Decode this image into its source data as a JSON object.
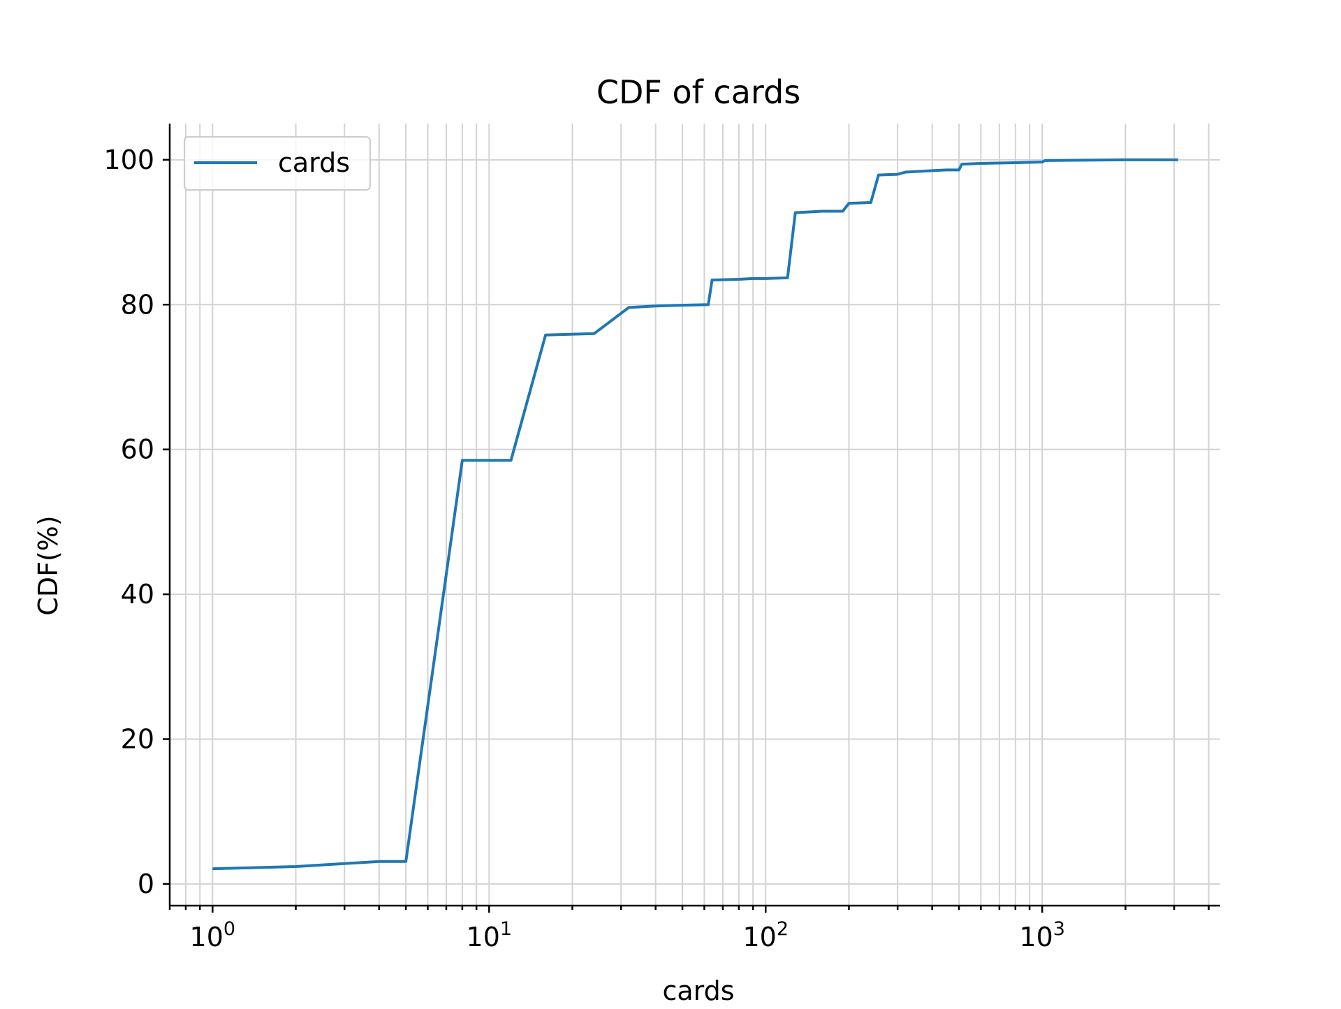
{
  "chart_data": {
    "type": "line",
    "title": "CDF of cards",
    "xlabel": "cards",
    "ylabel": "CDF(%)",
    "x_scale": "log",
    "xlim": [
      0.7,
      4400
    ],
    "ylim": [
      -3,
      105
    ],
    "grid": true,
    "legend_position": "top-left",
    "x_major_ticks": [
      {
        "value": 1,
        "base": "10",
        "exp": "0"
      },
      {
        "value": 10,
        "base": "10",
        "exp": "1"
      },
      {
        "value": 100,
        "base": "10",
        "exp": "2"
      },
      {
        "value": 1000,
        "base": "10",
        "exp": "3"
      }
    ],
    "y_ticks": [
      0,
      20,
      40,
      60,
      80,
      100
    ],
    "series": [
      {
        "name": "cards",
        "color": "#1f77b4",
        "x": [
          1,
          2,
          4,
          5,
          8,
          12,
          16,
          24,
          32,
          40,
          48,
          62,
          64,
          80,
          90,
          100,
          120,
          128,
          160,
          190,
          200,
          240,
          256,
          300,
          320,
          400,
          450,
          500,
          512,
          600,
          800,
          1000,
          1024,
          2000,
          3100
        ],
        "y": [
          2.1,
          2.4,
          3.1,
          3.1,
          58.5,
          58.5,
          75.8,
          76.0,
          79.6,
          79.8,
          79.9,
          80.0,
          83.4,
          83.5,
          83.6,
          83.6,
          83.7,
          92.7,
          92.9,
          92.9,
          94.0,
          94.1,
          97.9,
          98.0,
          98.3,
          98.5,
          98.6,
          98.6,
          99.4,
          99.5,
          99.6,
          99.7,
          99.9,
          100.0,
          100.0
        ]
      }
    ]
  }
}
